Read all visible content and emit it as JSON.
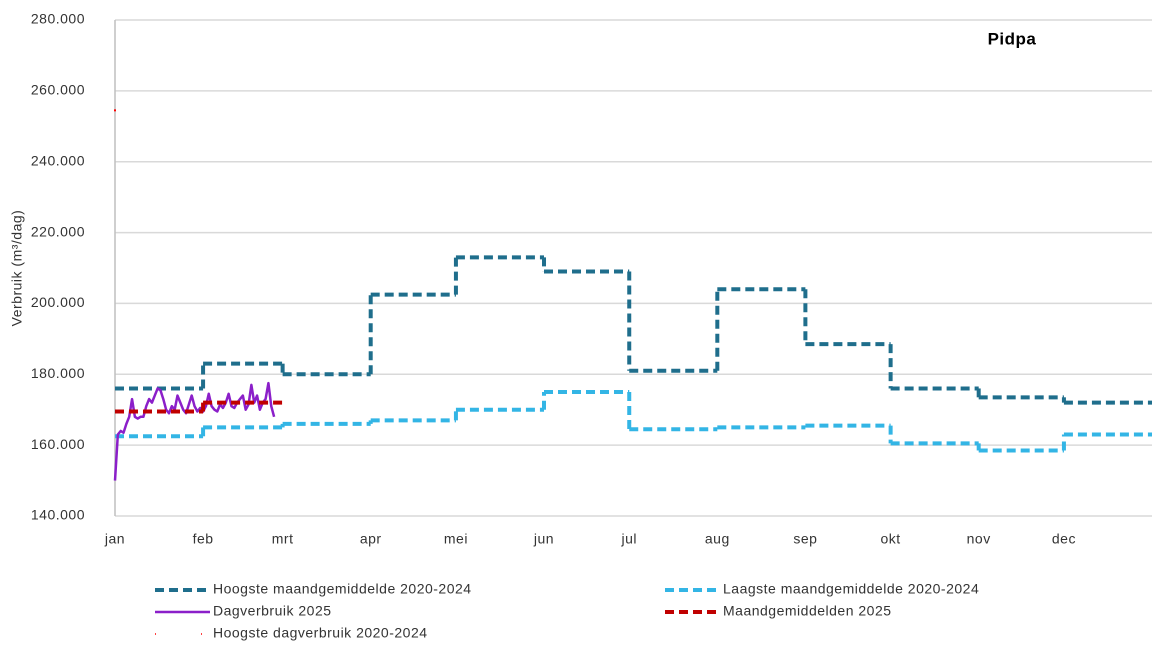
{
  "chart_data": {
    "type": "line",
    "title": "Pidpa",
    "ylabel": "Verbruik (m³/dag)",
    "xlim": [
      0,
      365
    ],
    "xticks": [
      {
        "value": 0,
        "label": "jan"
      },
      {
        "value": 31,
        "label": "feb"
      },
      {
        "value": 59,
        "label": "mrt"
      },
      {
        "value": 90,
        "label": "apr"
      },
      {
        "value": 120,
        "label": "mei"
      },
      {
        "value": 151,
        "label": "jun"
      },
      {
        "value": 181,
        "label": "jul"
      },
      {
        "value": 212,
        "label": "aug"
      },
      {
        "value": 243,
        "label": "sep"
      },
      {
        "value": 273,
        "label": "okt"
      },
      {
        "value": 304,
        "label": "nov"
      },
      {
        "value": 334,
        "label": "dec"
      }
    ],
    "ylim": [
      140000,
      280000
    ],
    "yticks": [
      {
        "value": 140000,
        "label": "140.000"
      },
      {
        "value": 160000,
        "label": "160.000"
      },
      {
        "value": 180000,
        "label": "180.000"
      },
      {
        "value": 200000,
        "label": "200.000"
      },
      {
        "value": 220000,
        "label": "220.000"
      },
      {
        "value": 240000,
        "label": "240.000"
      },
      {
        "value": 260000,
        "label": "260.000"
      },
      {
        "value": 280000,
        "label": "280.000"
      }
    ],
    "grid": true,
    "series": [
      {
        "name": "Hoogste maandgemiddelde 2020-2024",
        "color": "#1f6e8c",
        "dash": true,
        "values": [
          176000,
          183000,
          180000,
          202500,
          213000,
          209000,
          181000,
          204000,
          188500,
          176000,
          173500,
          172000
        ]
      },
      {
        "name": "Laagste maandgemiddelde 2020-2024",
        "color": "#33b5e5",
        "dash": true,
        "values": [
          162500,
          165000,
          166000,
          167000,
          170000,
          175000,
          164500,
          165000,
          165500,
          160500,
          158500,
          163000
        ]
      },
      {
        "name": "Dagverbruik 2025",
        "color": "#8b1fc9",
        "dash": false,
        "x": [
          0,
          1,
          2,
          3,
          4,
          5,
          6,
          7,
          8,
          9,
          10,
          11,
          12,
          13,
          14,
          15,
          16,
          17,
          18,
          19,
          20,
          21,
          22,
          23,
          24,
          25,
          26,
          27,
          28,
          29,
          30,
          31,
          32,
          33,
          34,
          35,
          36,
          37,
          38,
          39,
          40,
          41,
          42,
          43,
          44,
          45,
          46,
          47,
          48,
          49,
          50,
          51,
          52,
          53,
          54,
          55,
          56
        ],
        "values": [
          150000,
          163000,
          164000,
          163500,
          166000,
          168000,
          173000,
          168000,
          167500,
          168000,
          168000,
          171000,
          173000,
          172000,
          174000,
          176000,
          175500,
          173000,
          170000,
          169000,
          171000,
          170000,
          174000,
          172000,
          170000,
          169000,
          171500,
          174000,
          171000,
          169500,
          170500,
          169500,
          171000,
          174500,
          171000,
          170000,
          169500,
          171500,
          170500,
          172000,
          174500,
          171000,
          170500,
          172000,
          173000,
          174000,
          170000,
          171500,
          177000,
          172000,
          174000,
          170000,
          172000,
          173000,
          177500,
          171000,
          168000
        ]
      },
      {
        "name": "Maandgemiddelden 2025",
        "color": "#c00000",
        "dash": true,
        "values": [
          169500,
          172000,
          null,
          null,
          null,
          null,
          null,
          null,
          null,
          null,
          null,
          null
        ]
      },
      {
        "name": "Hoogste dagverbruik 2020-2024",
        "color": "#ff0000",
        "dash": false,
        "points": true,
        "x": [
          0
        ],
        "values": [
          254500
        ]
      }
    ]
  }
}
